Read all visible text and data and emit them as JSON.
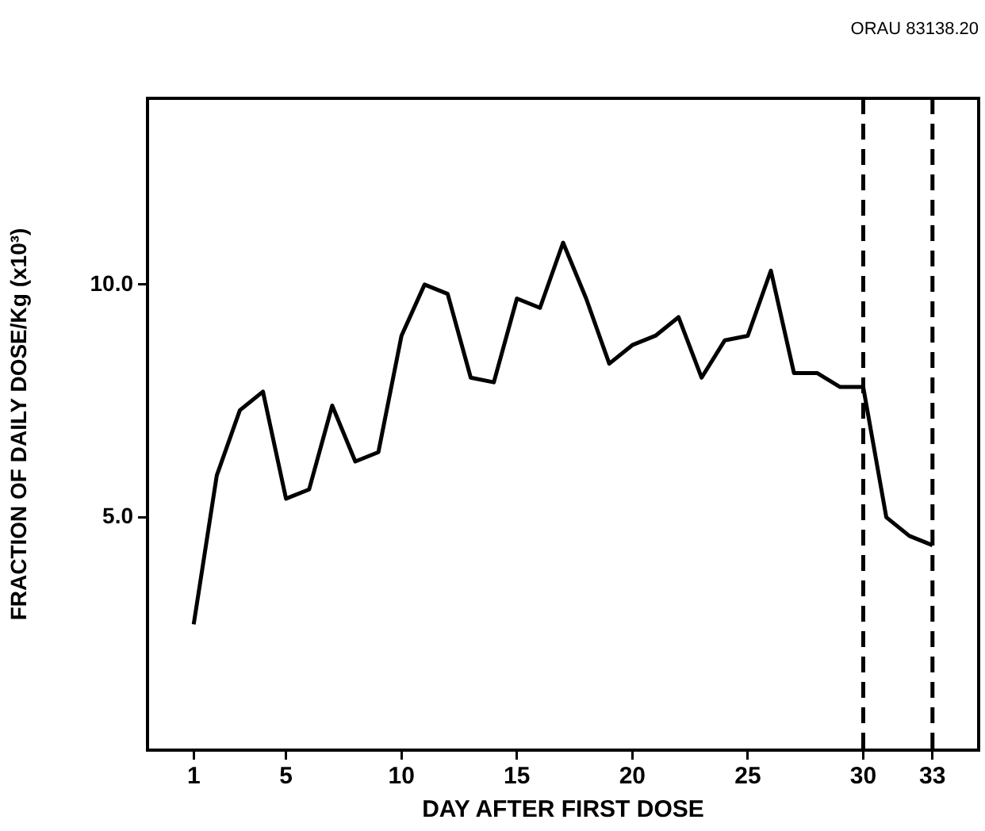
{
  "chart_data": {
    "type": "line",
    "xlabel": "DAY AFTER FIRST DOSE",
    "ylabel": "FRACTION OF DAILY DOSE/Kg (x10³)",
    "annotations": [
      "ORAU 83138.20"
    ],
    "x": [
      1,
      2,
      3,
      4,
      5,
      6,
      7,
      8,
      9,
      10,
      11,
      12,
      13,
      14,
      15,
      16,
      17,
      18,
      19,
      20,
      21,
      22,
      23,
      24,
      25,
      26,
      27,
      28,
      29,
      30,
      31,
      32,
      33
    ],
    "series": [
      {
        "color": "#000000",
        "values": [
          2.7,
          5.9,
          7.3,
          7.7,
          5.4,
          5.6,
          7.4,
          6.2,
          6.4,
          8.9,
          10.0,
          9.8,
          8.0,
          7.9,
          9.7,
          9.5,
          10.9,
          9.7,
          8.3,
          8.7,
          8.9,
          9.3,
          8.0,
          8.8,
          8.9,
          10.3,
          8.1,
          8.1,
          7.8,
          7.8,
          5.0,
          4.6,
          4.4
        ]
      }
    ],
    "xlim": [
      -1,
      35
    ],
    "xticks": [
      1,
      5,
      10,
      15,
      20,
      25,
      30,
      33
    ],
    "ylim": [
      0,
      14
    ],
    "yticks": [
      {
        "value": 5,
        "label": "5.0"
      },
      {
        "value": 10,
        "label": "10.0"
      }
    ],
    "ref_lines": [
      {
        "axis": "x",
        "value": 30,
        "color": "#000000",
        "line_style": "dashed"
      },
      {
        "axis": "x",
        "value": 33,
        "color": "#000000",
        "line_style": "dashed"
      }
    ],
    "grid": false,
    "legend": false,
    "marker": "none",
    "line_style": "solid"
  }
}
